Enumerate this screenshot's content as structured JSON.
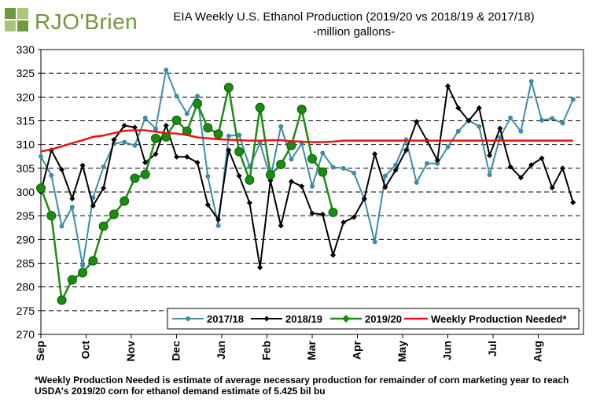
{
  "logo": {
    "text": "RJO'Brien",
    "icon": "rjo-brien-logo-mark"
  },
  "title": {
    "line1": "EIA Weekly U.S. Ethanol Production (2019/20 vs 2018/19 & 2017/18)",
    "line2": "-million  gallons-"
  },
  "footnote": "*Weekly Production Needed is estimate of average necessary production for remainder of corn marketing year to reach USDA's 2019/20 corn for ethanol demand estimate of 5.425 bil bu",
  "chart_data": {
    "type": "line",
    "title": "EIA Weekly U.S. Ethanol Production (2019/20 vs 2018/19 & 2017/18)",
    "ylabel": "-million  gallons-",
    "ylim": [
      270,
      330
    ],
    "yticks": [
      270,
      275,
      280,
      285,
      290,
      295,
      300,
      305,
      310,
      315,
      320,
      325,
      330
    ],
    "xlabels": [
      "Sep",
      "Oct",
      "Nov",
      "Dec",
      "Jan",
      "Feb",
      "Mar",
      "Apr",
      "May",
      "Jun",
      "Jul",
      "Aug"
    ],
    "weeks_in_year": 53,
    "grid": "horizontal dashed",
    "legend_position": "bottom-right",
    "series": [
      {
        "name": "2017/18",
        "color": "#3d8ca8",
        "values": [
          307.5,
          303.5,
          292.8,
          296.8,
          284.5,
          298.8,
          305.3,
          310.2,
          310.5,
          309.8,
          315.6,
          313.3,
          325.7,
          320.2,
          316.5,
          320.2,
          303.3,
          292.9,
          311.8,
          312.0,
          305.3,
          310.3,
          302.9,
          313.8,
          306.9,
          310.2,
          301.2,
          308.2,
          305.2,
          305.0,
          304.0,
          298.5,
          289.5,
          303.4,
          305.7,
          311.0,
          302.0,
          306.0,
          306.0,
          309.5,
          312.8,
          315.1,
          313.8,
          303.6,
          311.5,
          315.6,
          312.8,
          323.3,
          315.1,
          315.5,
          314.5,
          319.5
        ]
      },
      {
        "name": "2018/19",
        "color": "#000000",
        "values": [
          300.0,
          308.8,
          304.7,
          298.6,
          305.6,
          297.1,
          300.8,
          311.0,
          314.0,
          313.6,
          306.2,
          308.0,
          314.0,
          307.4,
          307.4,
          306.2,
          297.3,
          294.2,
          308.8,
          303.4,
          297.7,
          284.1,
          302.4,
          292.9,
          302.2,
          301.2,
          295.5,
          295.3,
          286.7,
          293.6,
          294.7,
          298.6,
          308.0,
          301.0,
          304.6,
          308.8,
          314.8,
          310.8,
          306.7,
          322.3,
          317.7,
          315.0,
          317.7,
          307.7,
          313.4,
          305.3,
          303.0,
          305.7,
          307.1,
          300.9,
          305.0,
          297.8
        ]
      },
      {
        "name": "2019/20",
        "color": "#1a8c10",
        "values": [
          300.8,
          295.0,
          277.2,
          281.5,
          283.0,
          285.5,
          292.8,
          295.3,
          298.1,
          302.9,
          303.7,
          311.3,
          311.6,
          315.1,
          312.8,
          318.6,
          313.5,
          312.2,
          322.0,
          308.5,
          302.5,
          317.8,
          303.6,
          305.8,
          309.8,
          317.4,
          307.0,
          304.2,
          295.7
        ]
      },
      {
        "name": "Weekly Production Needed*",
        "color": "#ee1111",
        "values": [
          308.5,
          309.0,
          309.6,
          310.3,
          310.9,
          311.6,
          311.9,
          312.4,
          312.9,
          313.0,
          313.0,
          312.7,
          312.4,
          312.3,
          312.0,
          311.5,
          311.3,
          311.1,
          311.0,
          310.9,
          310.8,
          310.8,
          310.9,
          310.9,
          310.7,
          310.6,
          310.5,
          310.5,
          310.6,
          310.8,
          310.8,
          310.8,
          310.8,
          310.8,
          310.8,
          310.8,
          310.8,
          310.8,
          310.8,
          310.8,
          310.8,
          310.8,
          310.8,
          310.8,
          310.8,
          310.8,
          310.8,
          310.8,
          310.8,
          310.8,
          310.8,
          310.8
        ]
      }
    ]
  }
}
